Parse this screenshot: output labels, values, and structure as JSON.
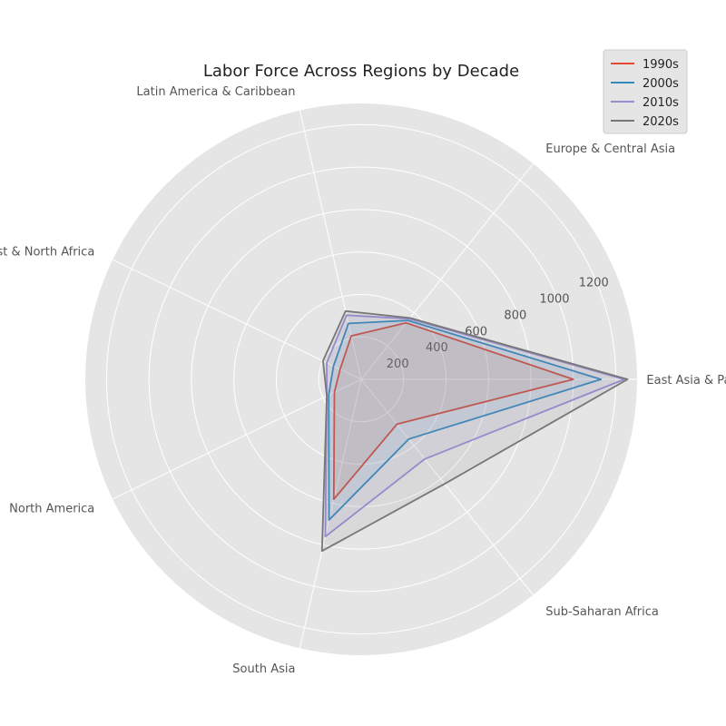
{
  "chart_data": {
    "type": "radar",
    "title": "Labor Force Across Regions by Decade",
    "categories": [
      "East Asia & Pacific",
      "Europe & Central Asia",
      "Latin America & Caribbean",
      "Middle East & North Africa",
      "North America",
      "South Asia",
      "Sub-Saharan Africa"
    ],
    "series": [
      {
        "name": "1990s",
        "color": "#E24A33",
        "values": [
          1000,
          340,
          210,
          110,
          140,
          580,
          270
        ]
      },
      {
        "name": "2000s",
        "color": "#348ABD",
        "values": [
          1130,
          355,
          270,
          145,
          170,
          680,
          360
        ]
      },
      {
        "name": "2010s",
        "color": "#988ED5",
        "values": [
          1240,
          365,
          310,
          180,
          180,
          760,
          480
        ]
      },
      {
        "name": "2020s",
        "color": "#777777",
        "values": [
          1255,
          370,
          330,
          200,
          180,
          830,
          630
        ]
      }
    ],
    "radial_ticks": [
      200,
      400,
      600,
      800,
      1000,
      1200
    ],
    "rlim": [
      0,
      1300
    ],
    "grid": true,
    "legend": "top-right"
  }
}
